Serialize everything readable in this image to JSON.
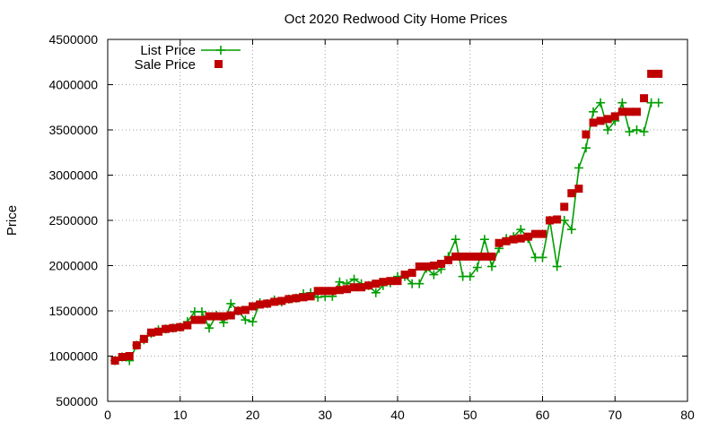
{
  "chart_data": {
    "type": "line",
    "title": "Oct 2020 Redwood City Home Prices",
    "xlabel": "",
    "ylabel": "Price",
    "xlim": [
      0,
      80
    ],
    "ylim": [
      500000,
      4500000
    ],
    "x_ticks": [
      0,
      10,
      20,
      30,
      40,
      50,
      60,
      70,
      80
    ],
    "y_ticks": [
      500000,
      1000000,
      1500000,
      2000000,
      2500000,
      3000000,
      3500000,
      4000000,
      4500000
    ],
    "grid": true,
    "legend_position": "top-left",
    "colors": {
      "list": "#009e00",
      "sale": "#c00000",
      "axis": "#000000",
      "grid": "#a0a0a0"
    },
    "series": [
      {
        "name": "List Price",
        "style": "line-plus",
        "values": [
          [
            1,
            950000
          ],
          [
            2,
            990000
          ],
          [
            3,
            950000
          ],
          [
            4,
            1120000
          ],
          [
            5,
            1180000
          ],
          [
            6,
            1250000
          ],
          [
            7,
            1290000
          ],
          [
            8,
            1300000
          ],
          [
            9,
            1310000
          ],
          [
            10,
            1320000
          ],
          [
            11,
            1380000
          ],
          [
            12,
            1490000
          ],
          [
            13,
            1490000
          ],
          [
            14,
            1310000
          ],
          [
            15,
            1450000
          ],
          [
            16,
            1370000
          ],
          [
            17,
            1580000
          ],
          [
            18,
            1500000
          ],
          [
            19,
            1400000
          ],
          [
            20,
            1380000
          ],
          [
            21,
            1590000
          ],
          [
            22,
            1580000
          ],
          [
            23,
            1620000
          ],
          [
            24,
            1600000
          ],
          [
            25,
            1630000
          ],
          [
            26,
            1640000
          ],
          [
            27,
            1690000
          ],
          [
            28,
            1700000
          ],
          [
            29,
            1650000
          ],
          [
            30,
            1660000
          ],
          [
            31,
            1660000
          ],
          [
            32,
            1820000
          ],
          [
            33,
            1800000
          ],
          [
            34,
            1850000
          ],
          [
            35,
            1800000
          ],
          [
            36,
            1780000
          ],
          [
            37,
            1700000
          ],
          [
            38,
            1780000
          ],
          [
            39,
            1810000
          ],
          [
            40,
            1880000
          ],
          [
            41,
            1880000
          ],
          [
            42,
            1800000
          ],
          [
            43,
            1800000
          ],
          [
            44,
            1970000
          ],
          [
            45,
            1900000
          ],
          [
            46,
            1960000
          ],
          [
            47,
            2100000
          ],
          [
            48,
            2290000
          ],
          [
            49,
            1880000
          ],
          [
            50,
            1880000
          ],
          [
            51,
            1980000
          ],
          [
            52,
            2290000
          ],
          [
            53,
            1990000
          ],
          [
            54,
            2190000
          ],
          [
            55,
            2300000
          ],
          [
            56,
            2320000
          ],
          [
            57,
            2400000
          ],
          [
            58,
            2300000
          ],
          [
            59,
            2090000
          ],
          [
            60,
            2090000
          ],
          [
            61,
            2500000
          ],
          [
            62,
            1990000
          ],
          [
            63,
            2500000
          ],
          [
            64,
            2400000
          ],
          [
            65,
            3080000
          ],
          [
            66,
            3300000
          ],
          [
            67,
            3700000
          ],
          [
            68,
            3800000
          ],
          [
            69,
            3500000
          ],
          [
            70,
            3600000
          ],
          [
            71,
            3800000
          ],
          [
            72,
            3480000
          ],
          [
            73,
            3500000
          ],
          [
            74,
            3480000
          ],
          [
            75,
            3800000
          ],
          [
            76,
            3800000
          ]
        ]
      },
      {
        "name": "Sale Price",
        "style": "square-points",
        "values": [
          [
            1,
            950000
          ],
          [
            2,
            990000
          ],
          [
            3,
            1000000
          ],
          [
            4,
            1120000
          ],
          [
            5,
            1190000
          ],
          [
            6,
            1260000
          ],
          [
            7,
            1270000
          ],
          [
            8,
            1300000
          ],
          [
            9,
            1310000
          ],
          [
            10,
            1320000
          ],
          [
            11,
            1340000
          ],
          [
            12,
            1400000
          ],
          [
            13,
            1400000
          ],
          [
            14,
            1440000
          ],
          [
            15,
            1440000
          ],
          [
            16,
            1440000
          ],
          [
            17,
            1450000
          ],
          [
            18,
            1500000
          ],
          [
            19,
            1510000
          ],
          [
            20,
            1550000
          ],
          [
            21,
            1570000
          ],
          [
            22,
            1580000
          ],
          [
            23,
            1600000
          ],
          [
            24,
            1610000
          ],
          [
            25,
            1630000
          ],
          [
            26,
            1640000
          ],
          [
            27,
            1650000
          ],
          [
            28,
            1660000
          ],
          [
            29,
            1720000
          ],
          [
            30,
            1720000
          ],
          [
            31,
            1720000
          ],
          [
            32,
            1730000
          ],
          [
            33,
            1740000
          ],
          [
            34,
            1760000
          ],
          [
            35,
            1760000
          ],
          [
            36,
            1780000
          ],
          [
            37,
            1800000
          ],
          [
            38,
            1820000
          ],
          [
            39,
            1830000
          ],
          [
            40,
            1830000
          ],
          [
            41,
            1900000
          ],
          [
            42,
            1920000
          ],
          [
            43,
            1990000
          ],
          [
            44,
            1990000
          ],
          [
            45,
            2000000
          ],
          [
            46,
            2020000
          ],
          [
            47,
            2060000
          ],
          [
            48,
            2100000
          ],
          [
            49,
            2100000
          ],
          [
            50,
            2100000
          ],
          [
            51,
            2100000
          ],
          [
            52,
            2100000
          ],
          [
            53,
            2100000
          ],
          [
            54,
            2250000
          ],
          [
            55,
            2270000
          ],
          [
            56,
            2290000
          ],
          [
            57,
            2300000
          ],
          [
            58,
            2320000
          ],
          [
            59,
            2350000
          ],
          [
            60,
            2350000
          ],
          [
            61,
            2500000
          ],
          [
            62,
            2510000
          ],
          [
            63,
            2650000
          ],
          [
            64,
            2800000
          ],
          [
            65,
            2850000
          ],
          [
            66,
            3450000
          ],
          [
            67,
            3580000
          ],
          [
            68,
            3600000
          ],
          [
            69,
            3620000
          ],
          [
            70,
            3650000
          ],
          [
            71,
            3700000
          ],
          [
            72,
            3700000
          ],
          [
            73,
            3700000
          ],
          [
            74,
            3850000
          ],
          [
            75,
            4120000
          ],
          [
            76,
            4120000
          ]
        ]
      }
    ]
  }
}
